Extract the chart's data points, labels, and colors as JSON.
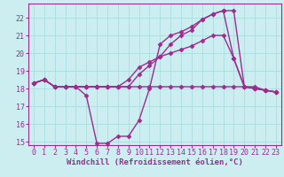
{
  "bg_color": "#cceef0",
  "grid_color": "#aadddd",
  "line_color": "#9b2d8e",
  "marker": "D",
  "markersize": 2.5,
  "linewidth": 1.0,
  "xlabel": "Windchill (Refroidissement éolien,°C)",
  "xlim": [
    -0.5,
    23.5
  ],
  "ylim": [
    14.8,
    22.8
  ],
  "yticks": [
    15,
    16,
    17,
    18,
    19,
    20,
    21,
    22
  ],
  "xticks": [
    0,
    1,
    2,
    3,
    4,
    5,
    6,
    7,
    8,
    9,
    10,
    11,
    12,
    13,
    14,
    15,
    16,
    17,
    18,
    19,
    20,
    21,
    22,
    23
  ],
  "series1_x": [
    0,
    1,
    2,
    3,
    4,
    5,
    6,
    7,
    8,
    9,
    10,
    11,
    12,
    13,
    14,
    15,
    16,
    17,
    18,
    19,
    20,
    21,
    22,
    23
  ],
  "series1_y": [
    18.3,
    18.5,
    18.1,
    18.1,
    18.1,
    18.1,
    18.1,
    18.1,
    18.1,
    18.1,
    18.1,
    18.1,
    18.1,
    18.1,
    18.1,
    18.1,
    18.1,
    18.1,
    18.1,
    18.1,
    18.1,
    18.1,
    17.9,
    17.8
  ],
  "series2_x": [
    0,
    1,
    2,
    3,
    4,
    5,
    6,
    7,
    8,
    9,
    10,
    11,
    12,
    13,
    14,
    15,
    16,
    17,
    18,
    19,
    20,
    21,
    22,
    23
  ],
  "series2_y": [
    18.3,
    18.5,
    18.1,
    18.1,
    18.1,
    17.6,
    14.9,
    14.9,
    15.3,
    15.3,
    16.2,
    18.0,
    20.5,
    21.0,
    21.2,
    21.5,
    21.9,
    22.2,
    22.4,
    19.7,
    18.1,
    18.0,
    17.9,
    17.8
  ],
  "series3_x": [
    0,
    1,
    2,
    3,
    4,
    5,
    6,
    7,
    8,
    9,
    10,
    11,
    12,
    13,
    14,
    15,
    16,
    17,
    18,
    19,
    20,
    21,
    22,
    23
  ],
  "series3_y": [
    18.3,
    18.5,
    18.1,
    18.1,
    18.1,
    18.1,
    18.1,
    18.1,
    18.1,
    18.1,
    18.8,
    19.3,
    19.8,
    20.5,
    21.0,
    21.3,
    21.9,
    22.2,
    22.4,
    22.4,
    18.1,
    18.0,
    17.9,
    17.8
  ],
  "series4_x": [
    0,
    1,
    2,
    3,
    4,
    5,
    6,
    7,
    8,
    9,
    10,
    11,
    12,
    13,
    14,
    15,
    16,
    17,
    18,
    19,
    20,
    21,
    22,
    23
  ],
  "series4_y": [
    18.3,
    18.5,
    18.1,
    18.1,
    18.1,
    18.1,
    18.1,
    18.1,
    18.1,
    18.5,
    19.2,
    19.5,
    19.8,
    20.0,
    20.2,
    20.4,
    20.7,
    21.0,
    21.0,
    19.7,
    18.1,
    18.0,
    17.9,
    17.8
  ],
  "xlabel_fontsize": 6.5,
  "tick_fontsize": 6.0,
  "tick_color": "#9b2d8e",
  "axis_color": "#9b2d8e"
}
